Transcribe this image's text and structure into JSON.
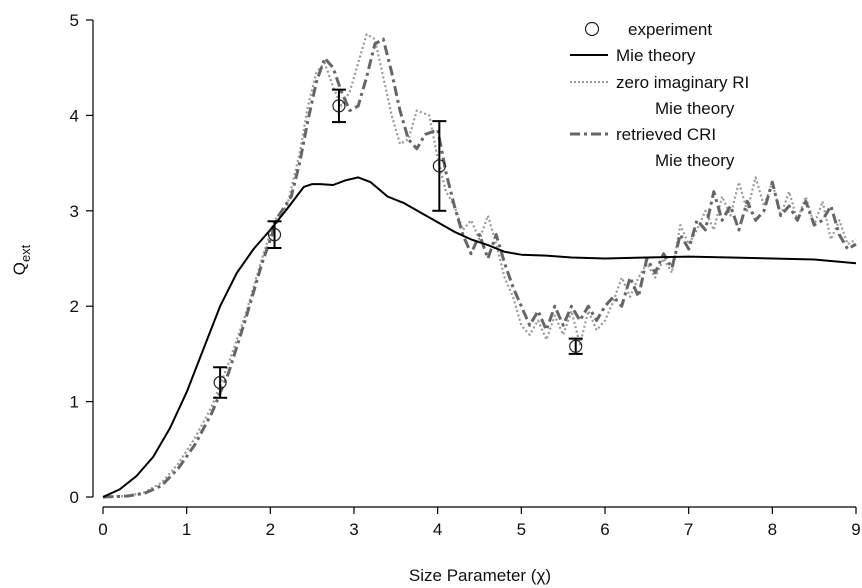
{
  "chart_data": {
    "type": "line",
    "title": "",
    "xlabel": "Size Parameter (χ)",
    "ylabel_main": "Q",
    "ylabel_sub": "ext",
    "xlim": [
      0,
      9
    ],
    "ylim": [
      0,
      5
    ],
    "x_ticks": [
      0,
      1,
      2,
      3,
      4,
      5,
      6,
      7,
      8,
      9
    ],
    "y_ticks": [
      0,
      1,
      2,
      3,
      4,
      5
    ],
    "grid": false,
    "legend_position": "top-right",
    "legend": [
      {
        "label": "experiment",
        "continuation": ""
      },
      {
        "label": "Mie theory",
        "continuation": ""
      },
      {
        "label": "zero imaginary RI",
        "continuation": "Mie theory"
      },
      {
        "label": "retrieved CRI",
        "continuation": "Mie theory"
      }
    ],
    "series": [
      {
        "name": "experiment",
        "style": "markers",
        "color": "#222222",
        "points": [
          {
            "x": 1.4,
            "y": 1.2,
            "err": 0.16
          },
          {
            "x": 2.05,
            "y": 2.75,
            "err": 0.14
          },
          {
            "x": 2.82,
            "y": 4.1,
            "err": 0.17
          },
          {
            "x": 4.02,
            "y": 3.47,
            "err": 0.47
          },
          {
            "x": 5.65,
            "y": 1.58,
            "err": 0.08
          }
        ]
      },
      {
        "name": "Mie theory",
        "style": "solid",
        "color": "#000000",
        "x": [
          0,
          0.2,
          0.4,
          0.6,
          0.8,
          1.0,
          1.2,
          1.4,
          1.6,
          1.8,
          2.0,
          2.2,
          2.4,
          2.5,
          2.6,
          2.75,
          2.9,
          3.05,
          3.2,
          3.4,
          3.6,
          3.8,
          4.0,
          4.2,
          4.4,
          4.6,
          4.8,
          5.0,
          5.3,
          5.6,
          6.0,
          6.5,
          7.0,
          7.5,
          8.0,
          8.5,
          9.0
        ],
        "y": [
          0,
          0.08,
          0.22,
          0.42,
          0.72,
          1.1,
          1.55,
          2.0,
          2.35,
          2.6,
          2.8,
          3.02,
          3.25,
          3.28,
          3.28,
          3.27,
          3.32,
          3.35,
          3.3,
          3.15,
          3.08,
          2.98,
          2.88,
          2.78,
          2.7,
          2.64,
          2.57,
          2.54,
          2.53,
          2.51,
          2.5,
          2.51,
          2.52,
          2.51,
          2.5,
          2.49,
          2.45
        ]
      },
      {
        "name": "zero imaginary RI",
        "style": "dotted",
        "color": "#999999",
        "x": [
          0,
          0.3,
          0.5,
          0.7,
          0.9,
          1.1,
          1.3,
          1.5,
          1.7,
          1.9,
          2.05,
          2.2,
          2.35,
          2.45,
          2.55,
          2.65,
          2.75,
          2.85,
          2.95,
          3.05,
          3.15,
          3.25,
          3.35,
          3.45,
          3.55,
          3.65,
          3.75,
          3.9,
          4.0,
          4.1,
          4.2,
          4.3,
          4.4,
          4.5,
          4.6,
          4.7,
          4.8,
          4.9,
          5.0,
          5.1,
          5.2,
          5.3,
          5.4,
          5.5,
          5.6,
          5.7,
          5.8,
          5.9,
          6.0,
          6.1,
          6.2,
          6.3,
          6.4,
          6.5,
          6.6,
          6.7,
          6.8,
          6.9,
          7.0,
          7.1,
          7.2,
          7.3,
          7.4,
          7.5,
          7.6,
          7.7,
          7.8,
          7.9,
          8.0,
          8.1,
          8.2,
          8.3,
          8.4,
          8.5,
          8.6,
          8.7,
          8.8,
          8.9,
          9.0
        ],
        "y": [
          0,
          0.01,
          0.05,
          0.15,
          0.35,
          0.62,
          0.95,
          1.4,
          1.9,
          2.5,
          2.9,
          3.05,
          3.6,
          4.1,
          4.45,
          4.55,
          4.3,
          4.1,
          4.25,
          4.55,
          4.85,
          4.8,
          4.4,
          4.0,
          3.7,
          3.75,
          4.05,
          4.0,
          3.55,
          3.2,
          3.05,
          2.8,
          2.9,
          2.7,
          2.95,
          2.65,
          2.3,
          2.1,
          1.8,
          1.7,
          1.85,
          1.65,
          1.9,
          1.7,
          1.95,
          1.6,
          1.95,
          1.75,
          1.85,
          2.05,
          2.3,
          2.1,
          2.3,
          2.45,
          2.3,
          2.5,
          2.35,
          2.85,
          2.65,
          2.8,
          3.0,
          2.8,
          3.15,
          2.95,
          3.3,
          3.0,
          3.35,
          3.05,
          3.3,
          2.95,
          3.2,
          2.9,
          3.15,
          2.85,
          3.1,
          2.7,
          2.9,
          2.65,
          2.7
        ]
      },
      {
        "name": "retrieved CRI",
        "style": "dashdot",
        "color": "#666666",
        "x": [
          0,
          0.3,
          0.5,
          0.7,
          0.9,
          1.1,
          1.3,
          1.5,
          1.7,
          1.9,
          2.1,
          2.25,
          2.35,
          2.45,
          2.55,
          2.65,
          2.75,
          2.85,
          2.95,
          3.05,
          3.15,
          3.25,
          3.35,
          3.45,
          3.55,
          3.65,
          3.75,
          3.85,
          4.0,
          4.1,
          4.2,
          4.3,
          4.4,
          4.5,
          4.6,
          4.7,
          4.8,
          4.9,
          5.0,
          5.1,
          5.2,
          5.3,
          5.4,
          5.5,
          5.6,
          5.7,
          5.8,
          5.9,
          6.0,
          6.1,
          6.2,
          6.3,
          6.4,
          6.5,
          6.6,
          6.7,
          6.8,
          6.9,
          7.0,
          7.1,
          7.2,
          7.3,
          7.4,
          7.5,
          7.6,
          7.7,
          7.8,
          7.9,
          8.0,
          8.1,
          8.2,
          8.3,
          8.4,
          8.5,
          8.6,
          8.7,
          8.8,
          8.9,
          9.0
        ],
        "y": [
          0,
          0.01,
          0.04,
          0.12,
          0.3,
          0.55,
          0.88,
          1.3,
          1.85,
          2.45,
          2.95,
          3.15,
          3.5,
          3.95,
          4.35,
          4.6,
          4.5,
          4.25,
          4.05,
          4.1,
          4.4,
          4.75,
          4.8,
          4.45,
          4.05,
          3.75,
          3.65,
          3.8,
          3.85,
          3.4,
          3.05,
          2.75,
          2.55,
          2.75,
          2.5,
          2.75,
          2.45,
          2.2,
          2.0,
          1.8,
          1.95,
          1.75,
          2.0,
          1.8,
          2.0,
          1.85,
          2.0,
          1.85,
          2.0,
          2.1,
          2.0,
          2.3,
          2.1,
          2.5,
          2.35,
          2.55,
          2.4,
          2.75,
          2.6,
          2.9,
          2.8,
          3.2,
          2.9,
          3.05,
          2.8,
          3.1,
          2.9,
          3.0,
          3.3,
          2.95,
          3.05,
          2.9,
          3.1,
          2.85,
          2.9,
          3.05,
          2.75,
          2.6,
          2.65
        ]
      }
    ]
  }
}
